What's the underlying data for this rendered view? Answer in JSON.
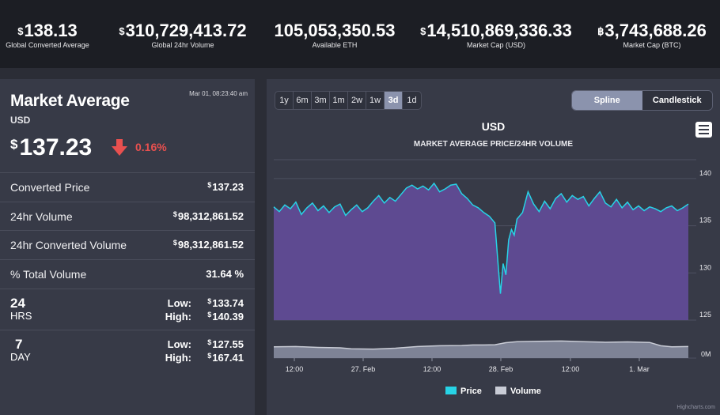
{
  "top_stats": [
    {
      "currency": "$",
      "value": "138.13",
      "label": "Global Converted Average"
    },
    {
      "currency": "$",
      "value": "310,729,413.72",
      "label": "Global 24hr Volume"
    },
    {
      "currency": "",
      "value": "105,053,350.53",
      "label": "Available ETH"
    },
    {
      "currency": "$",
      "value": "14,510,869,336.33",
      "label": "Market Cap (USD)"
    },
    {
      "currency": "฿",
      "value": "3,743,688.26",
      "label": "Market Cap (BTC)"
    }
  ],
  "market": {
    "title": "Market Average",
    "currency_code": "USD",
    "timestamp": "Mar 01, 08:23:40 am",
    "price_currency": "$",
    "price": "137.23",
    "change": "0.16%",
    "change_direction": "down",
    "rows": [
      {
        "key": "Converted Price",
        "currency": "$",
        "value": "137.23"
      },
      {
        "key": "24hr Volume",
        "currency": "$",
        "value": "98,312,861.52"
      },
      {
        "key": "24hr Converted Volume",
        "currency": "$",
        "value": "98,312,861.52"
      },
      {
        "key": "% Total Volume",
        "currency": "",
        "value": "31.64 %"
      }
    ],
    "range_24h": {
      "big": "24",
      "small": "HRS",
      "low_label": "Low:",
      "low_currency": "$",
      "low": "133.74",
      "high_label": "High:",
      "high_currency": "$",
      "high": "140.39"
    },
    "range_7d": {
      "big": "7",
      "small": "DAY",
      "low_label": "Low:",
      "low_currency": "$",
      "low": "127.55",
      "high_label": "High:",
      "high_currency": "$",
      "high": "167.41"
    }
  },
  "chart_controls": {
    "zoom_buttons": [
      "1y",
      "6m",
      "3m",
      "1m",
      "2w",
      "1w",
      "3d",
      "1d"
    ],
    "zoom_selected": "3d",
    "type_buttons": [
      "Spline",
      "Candlestick"
    ],
    "type_selected": "Spline",
    "menu_icon": "hamburger-menu-icon",
    "credits": "Highcharts.com"
  },
  "colors": {
    "price_line": "#27d3e6",
    "price_fill": "#5e4a91",
    "volume_fill": "#c9ccd6",
    "down": "#e8504f",
    "panel": "#373a47",
    "header": "#1c1e24"
  },
  "chart_data": {
    "type": "area",
    "title": "USD",
    "subtitle": "MARKET AVERAGE PRICE/24HR VOLUME",
    "x_ticks": [
      "12:00",
      "27. Feb",
      "12:00",
      "28. Feb",
      "12:00",
      "1. Mar"
    ],
    "y_ticks": [
      "140",
      "135",
      "130",
      "125"
    ],
    "volume_tick": "0M",
    "ylim": [
      125,
      142
    ],
    "x_range_hours": [
      0,
      75
    ],
    "legend": [
      "Price",
      "Volume"
    ],
    "legend_position": "bottom-center",
    "series": [
      {
        "name": "Price",
        "x": [
          0,
          1,
          2,
          3,
          4,
          5,
          6,
          7,
          8,
          9,
          10,
          11,
          12,
          13,
          14,
          15,
          16,
          17,
          18,
          19,
          20,
          21,
          22,
          23,
          24,
          25,
          26,
          27,
          28,
          29,
          30,
          31,
          32,
          33,
          34,
          35,
          36,
          37,
          38,
          39,
          40,
          40.5,
          41,
          41.5,
          42,
          42.5,
          43,
          43.5,
          44,
          45,
          46,
          47,
          48,
          49,
          50,
          51,
          52,
          53,
          54,
          55,
          56,
          57,
          58,
          59,
          60,
          61,
          62,
          63,
          64,
          65,
          66,
          67,
          68,
          69,
          70,
          71,
          72,
          73,
          74,
          75
        ],
        "values": [
          137.0,
          136.5,
          137.2,
          136.8,
          137.5,
          136.2,
          136.9,
          137.4,
          136.6,
          137.1,
          136.4,
          137.0,
          137.3,
          136.1,
          136.7,
          137.2,
          136.5,
          136.9,
          137.6,
          138.2,
          137.4,
          138.0,
          137.6,
          138.3,
          139.0,
          139.3,
          138.9,
          139.2,
          138.8,
          139.5,
          138.6,
          138.9,
          139.3,
          139.4,
          138.4,
          137.9,
          137.2,
          136.9,
          136.4,
          136.0,
          135.3,
          131.5,
          127.8,
          131.0,
          129.8,
          133.5,
          134.6,
          134.0,
          135.7,
          136.4,
          138.6,
          137.3,
          136.5,
          137.6,
          136.8,
          137.9,
          138.4,
          137.5,
          138.2,
          137.8,
          138.1,
          137.1,
          137.9,
          138.6,
          137.4,
          137.0,
          137.8,
          136.9,
          137.5,
          136.7,
          137.1,
          136.6,
          137.0,
          136.8,
          136.5,
          136.9,
          137.1,
          136.6,
          136.9,
          137.3
        ]
      },
      {
        "name": "Volume",
        "x": [
          0,
          4,
          8,
          12,
          14,
          18,
          22,
          26,
          30,
          34,
          36,
          38,
          40,
          42,
          44,
          48,
          52,
          56,
          60,
          64,
          68,
          70,
          72,
          75
        ],
        "values": [
          0.55,
          0.56,
          0.52,
          0.5,
          0.45,
          0.44,
          0.48,
          0.56,
          0.6,
          0.61,
          0.64,
          0.64,
          0.65,
          0.75,
          0.8,
          0.82,
          0.83,
          0.8,
          0.77,
          0.79,
          0.76,
          0.6,
          0.55,
          0.56
        ]
      }
    ]
  }
}
